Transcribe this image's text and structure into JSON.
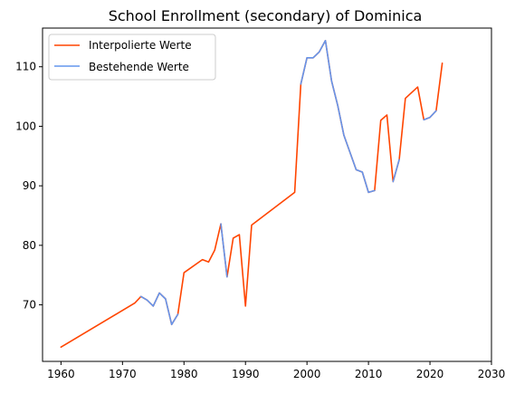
{
  "chart_data": {
    "type": "line",
    "title": "School Enrollment (secondary) of Dominica",
    "xlabel": "",
    "ylabel": "",
    "xlim": [
      1957,
      2030
    ],
    "ylim": [
      60.5,
      116.5
    ],
    "xticks": [
      1960,
      1970,
      1980,
      1990,
      2000,
      2010,
      2020,
      2030
    ],
    "yticks": [
      70,
      80,
      90,
      100,
      110
    ],
    "grid": false,
    "legend_position": "top-left",
    "series": [
      {
        "name": "Interpolierte Werte",
        "color": "#ff4500",
        "x": [
          1960,
          1972,
          1973,
          1974,
          1975,
          1976,
          1977,
          1978,
          1979,
          1980,
          1983,
          1984,
          1985,
          1986,
          1987,
          1988,
          1989,
          1990,
          1991,
          1998,
          1999,
          2000,
          2001,
          2002,
          2003,
          2004,
          2005,
          2006,
          2007,
          2008,
          2009,
          2010,
          2011,
          2012,
          2013,
          2014,
          2015,
          2016,
          2018,
          2019,
          2020,
          2021,
          2022
        ],
        "y": [
          62.9,
          70.3,
          71.4,
          70.8,
          69.8,
          72.0,
          71.0,
          66.7,
          68.4,
          75.4,
          77.6,
          77.2,
          79.2,
          83.6,
          74.7,
          81.2,
          81.8,
          69.8,
          83.4,
          88.9,
          107.1,
          111.5,
          111.5,
          112.5,
          114.4,
          107.6,
          103.5,
          98.5,
          95.6,
          92.7,
          92.3,
          88.9,
          89.2,
          101.0,
          101.9,
          90.7,
          94.4,
          104.7,
          106.6,
          101.1,
          101.5,
          102.6,
          110.6
        ]
      },
      {
        "name": "Bestehende Werte",
        "color": "#6495ed",
        "segments": [
          {
            "x": [
              1973,
              1974,
              1975,
              1976,
              1977,
              1978,
              1979
            ],
            "y": [
              71.4,
              70.8,
              69.8,
              72.0,
              71.0,
              66.7,
              68.4
            ]
          },
          {
            "x": [
              1986,
              1987
            ],
            "y": [
              83.6,
              74.7
            ]
          },
          {
            "x": [
              1999,
              2000,
              2001,
              2002,
              2003,
              2004,
              2005,
              2006,
              2007,
              2008,
              2009,
              2010,
              2011
            ],
            "y": [
              107.1,
              111.5,
              111.5,
              112.5,
              114.4,
              107.6,
              103.5,
              98.5,
              95.6,
              92.7,
              92.3,
              88.9,
              89.2
            ]
          },
          {
            "x": [
              2014,
              2015
            ],
            "y": [
              90.7,
              94.4
            ]
          },
          {
            "x": [
              2019,
              2020,
              2021
            ],
            "y": [
              101.1,
              101.5,
              102.6
            ]
          }
        ]
      }
    ]
  }
}
